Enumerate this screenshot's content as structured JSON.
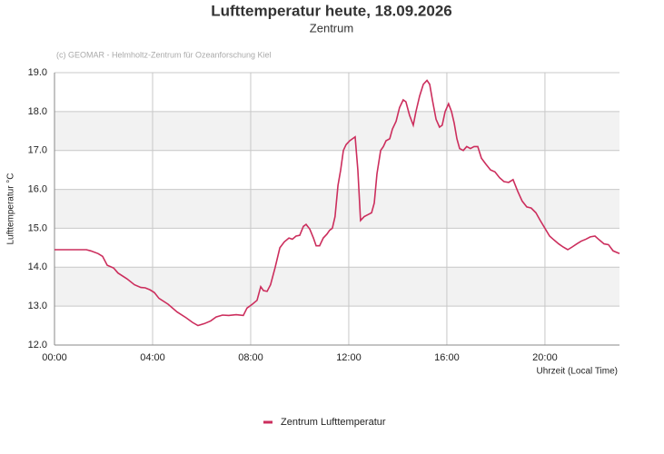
{
  "chart_data": {
    "type": "line",
    "title": "Lufttemperatur heute, 18.09.2026",
    "subtitle": "Zentrum",
    "credit": "(c) GEOMAR - Helmholtz-Zentrum für Ozeanforschung Kiel",
    "y_label": "Lufttemperatur °C",
    "x_label": "Uhrzeit (Local Time)",
    "xlim": [
      0,
      23.04
    ],
    "ylim": [
      12,
      19
    ],
    "xticks": [
      {
        "value": 0,
        "label": "00:00"
      },
      {
        "value": 4,
        "label": "04:00"
      },
      {
        "value": 8,
        "label": "08:00"
      },
      {
        "value": 12,
        "label": "12:00"
      },
      {
        "value": 16,
        "label": "16:00"
      },
      {
        "value": 20,
        "label": "20:00"
      }
    ],
    "yticks": [
      {
        "value": 12,
        "label": "12.0"
      },
      {
        "value": 13,
        "label": "13.0"
      },
      {
        "value": 14,
        "label": "14.0"
      },
      {
        "value": 15,
        "label": "15.0"
      },
      {
        "value": 16,
        "label": "16.0"
      },
      {
        "value": 17,
        "label": "17.0"
      },
      {
        "value": 18,
        "label": "18.0"
      },
      {
        "value": 19,
        "label": "19.0"
      }
    ],
    "grid": true,
    "bands": true,
    "legend": "bottom",
    "x": [
      0,
      1.3,
      1.48,
      1.78,
      1.96,
      2.15,
      2.41,
      2.59,
      2.96,
      3.26,
      3.52,
      3.7,
      3.89,
      4.07,
      4.26,
      4.63,
      5.0,
      5.37,
      5.63,
      5.85,
      6.11,
      6.37,
      6.59,
      6.85,
      7.11,
      7.41,
      7.7,
      7.85,
      8.07,
      8.26,
      8.41,
      8.52,
      8.67,
      8.81,
      9.0,
      9.19,
      9.37,
      9.56,
      9.7,
      9.85,
      10.0,
      10.15,
      10.26,
      10.41,
      10.56,
      10.67,
      10.81,
      10.96,
      11.11,
      11.22,
      11.33,
      11.44,
      11.56,
      11.67,
      11.78,
      11.89,
      12.04,
      12.15,
      12.26,
      12.37,
      12.48,
      12.63,
      12.78,
      12.93,
      13.04,
      13.15,
      13.3,
      13.41,
      13.52,
      13.67,
      13.78,
      13.93,
      14.07,
      14.22,
      14.33,
      14.48,
      14.63,
      14.74,
      14.89,
      15.04,
      15.19,
      15.3,
      15.41,
      15.56,
      15.7,
      15.81,
      15.93,
      16.07,
      16.19,
      16.3,
      16.41,
      16.52,
      16.67,
      16.81,
      16.96,
      17.11,
      17.26,
      17.41,
      17.59,
      17.78,
      17.96,
      18.15,
      18.33,
      18.52,
      18.7,
      18.89,
      19.07,
      19.26,
      19.44,
      19.63,
      19.81,
      20.0,
      20.19,
      20.37,
      20.56,
      20.74,
      20.93,
      21.11,
      21.3,
      21.48,
      21.67,
      21.85,
      22.04,
      22.22,
      22.41,
      22.59,
      22.78,
      23.04
    ],
    "series": [
      {
        "name": "Zentrum Lufttemperatur",
        "color": "#cc2e5d",
        "values": [
          14.45,
          14.45,
          14.42,
          14.35,
          14.28,
          14.05,
          13.98,
          13.85,
          13.7,
          13.55,
          13.48,
          13.47,
          13.42,
          13.35,
          13.2,
          13.05,
          12.85,
          12.7,
          12.58,
          12.5,
          12.55,
          12.62,
          12.72,
          12.77,
          12.76,
          12.78,
          12.76,
          12.95,
          13.05,
          13.15,
          13.5,
          13.4,
          13.38,
          13.55,
          14.0,
          14.5,
          14.65,
          14.75,
          14.72,
          14.8,
          14.82,
          15.05,
          15.1,
          14.98,
          14.75,
          14.55,
          14.55,
          14.75,
          14.85,
          14.95,
          15.0,
          15.3,
          16.1,
          16.5,
          17.0,
          17.15,
          17.25,
          17.3,
          17.35,
          16.5,
          15.2,
          15.3,
          15.35,
          15.4,
          15.65,
          16.4,
          17.0,
          17.1,
          17.25,
          17.3,
          17.55,
          17.75,
          18.1,
          18.3,
          18.25,
          17.9,
          17.65,
          18.0,
          18.4,
          18.7,
          18.8,
          18.7,
          18.3,
          17.8,
          17.6,
          17.65,
          18.0,
          18.2,
          18.0,
          17.7,
          17.3,
          17.05,
          17.0,
          17.1,
          17.05,
          17.1,
          17.1,
          16.8,
          16.65,
          16.5,
          16.45,
          16.3,
          16.2,
          16.18,
          16.25,
          15.95,
          15.7,
          15.55,
          15.52,
          15.4,
          15.2,
          15.0,
          14.8,
          14.7,
          14.6,
          14.52,
          14.45,
          14.52,
          14.6,
          14.67,
          14.72,
          14.78,
          14.8,
          14.7,
          14.6,
          14.58,
          14.42,
          14.35
        ]
      }
    ]
  }
}
